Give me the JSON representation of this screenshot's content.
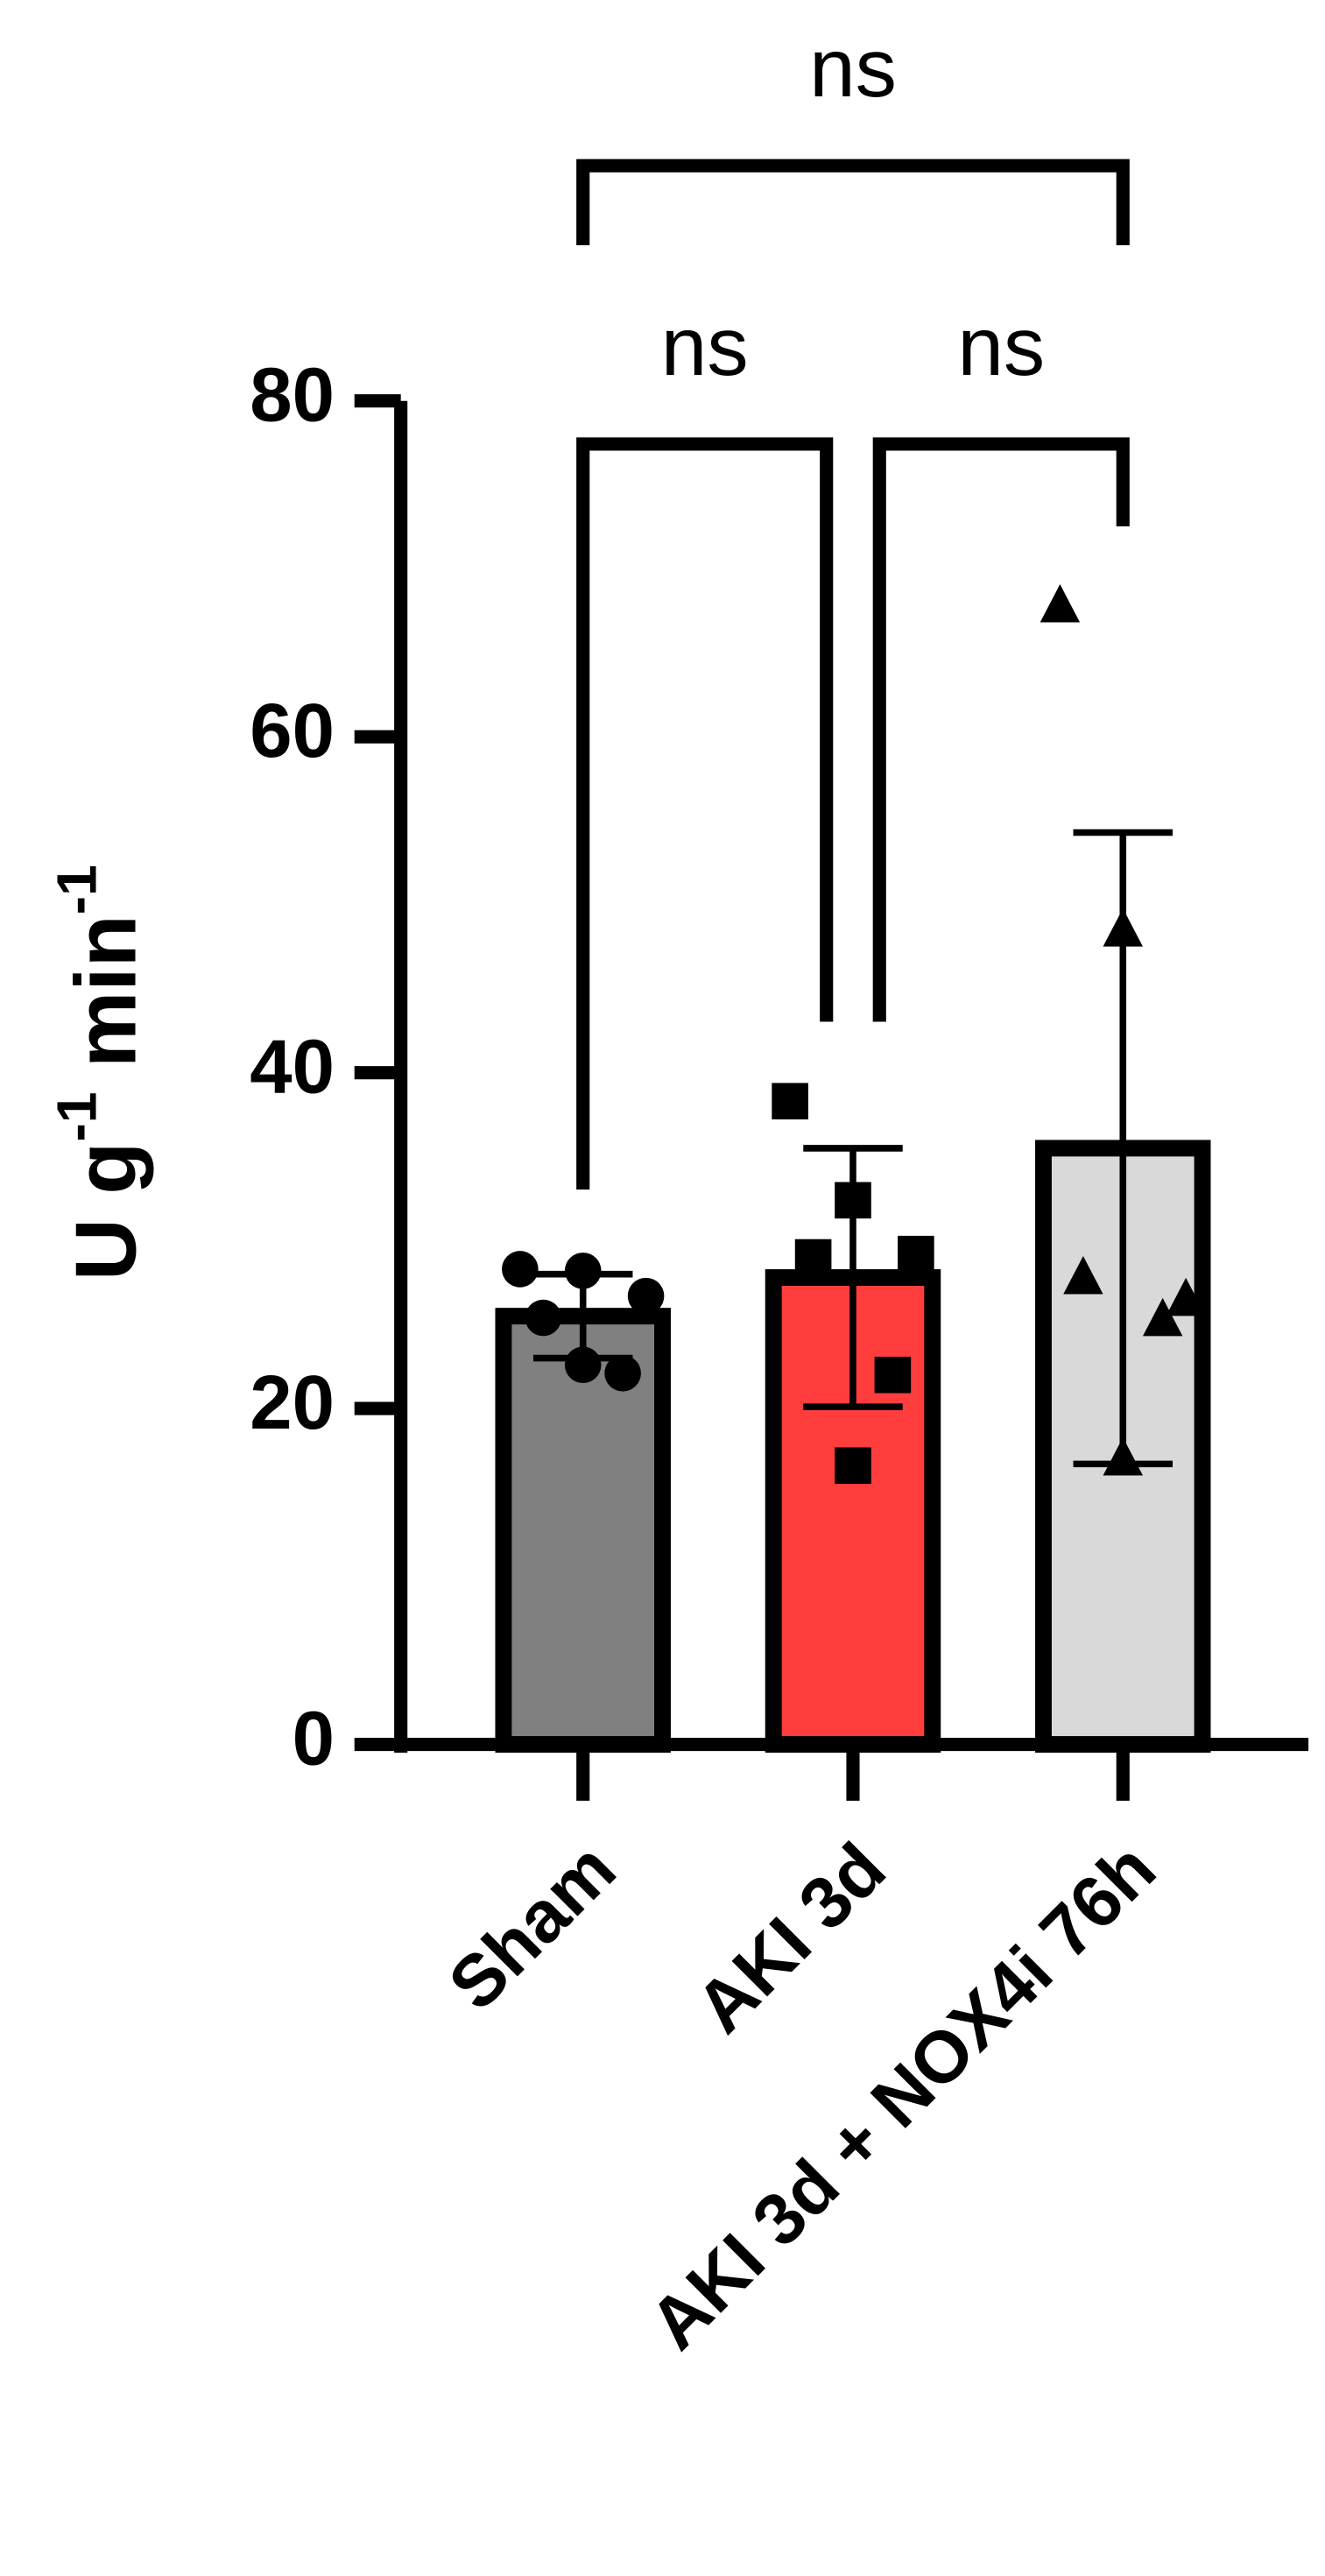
{
  "chart_data": {
    "type": "bar",
    "categories": [
      "Sham",
      "AKI 3d",
      "AKI 3d + NOX4i 76h"
    ],
    "values": [
      25.5,
      27.8,
      35.5
    ],
    "errors": [
      2.5,
      7.7,
      18.8
    ],
    "colors": [
      "#808080",
      "#ff3d3d",
      "#d9d9d9"
    ],
    "markers": [
      "circle",
      "square",
      "triangle"
    ],
    "points": [
      [
        28.3,
        28.2,
        26.7,
        25.4,
        22.1,
        22.6
      ],
      [
        38.3,
        32.4,
        29.2,
        29.0,
        22.0,
        16.6
      ],
      [
        67.8,
        48.5,
        26.5,
        27.8,
        25.3,
        17.0
      ]
    ],
    "y_label": [
      "U g",
      "-1",
      " min",
      "-1"
    ],
    "ylim": [
      0,
      80
    ],
    "yticks": [
      0,
      20,
      40,
      60,
      80
    ],
    "comparisons": [
      {
        "pair": [
          0,
          1
        ],
        "label": "ns"
      },
      {
        "pair": [
          1,
          2
        ],
        "label": "ns"
      },
      {
        "pair": [
          0,
          2
        ],
        "label": "ns"
      }
    ]
  }
}
